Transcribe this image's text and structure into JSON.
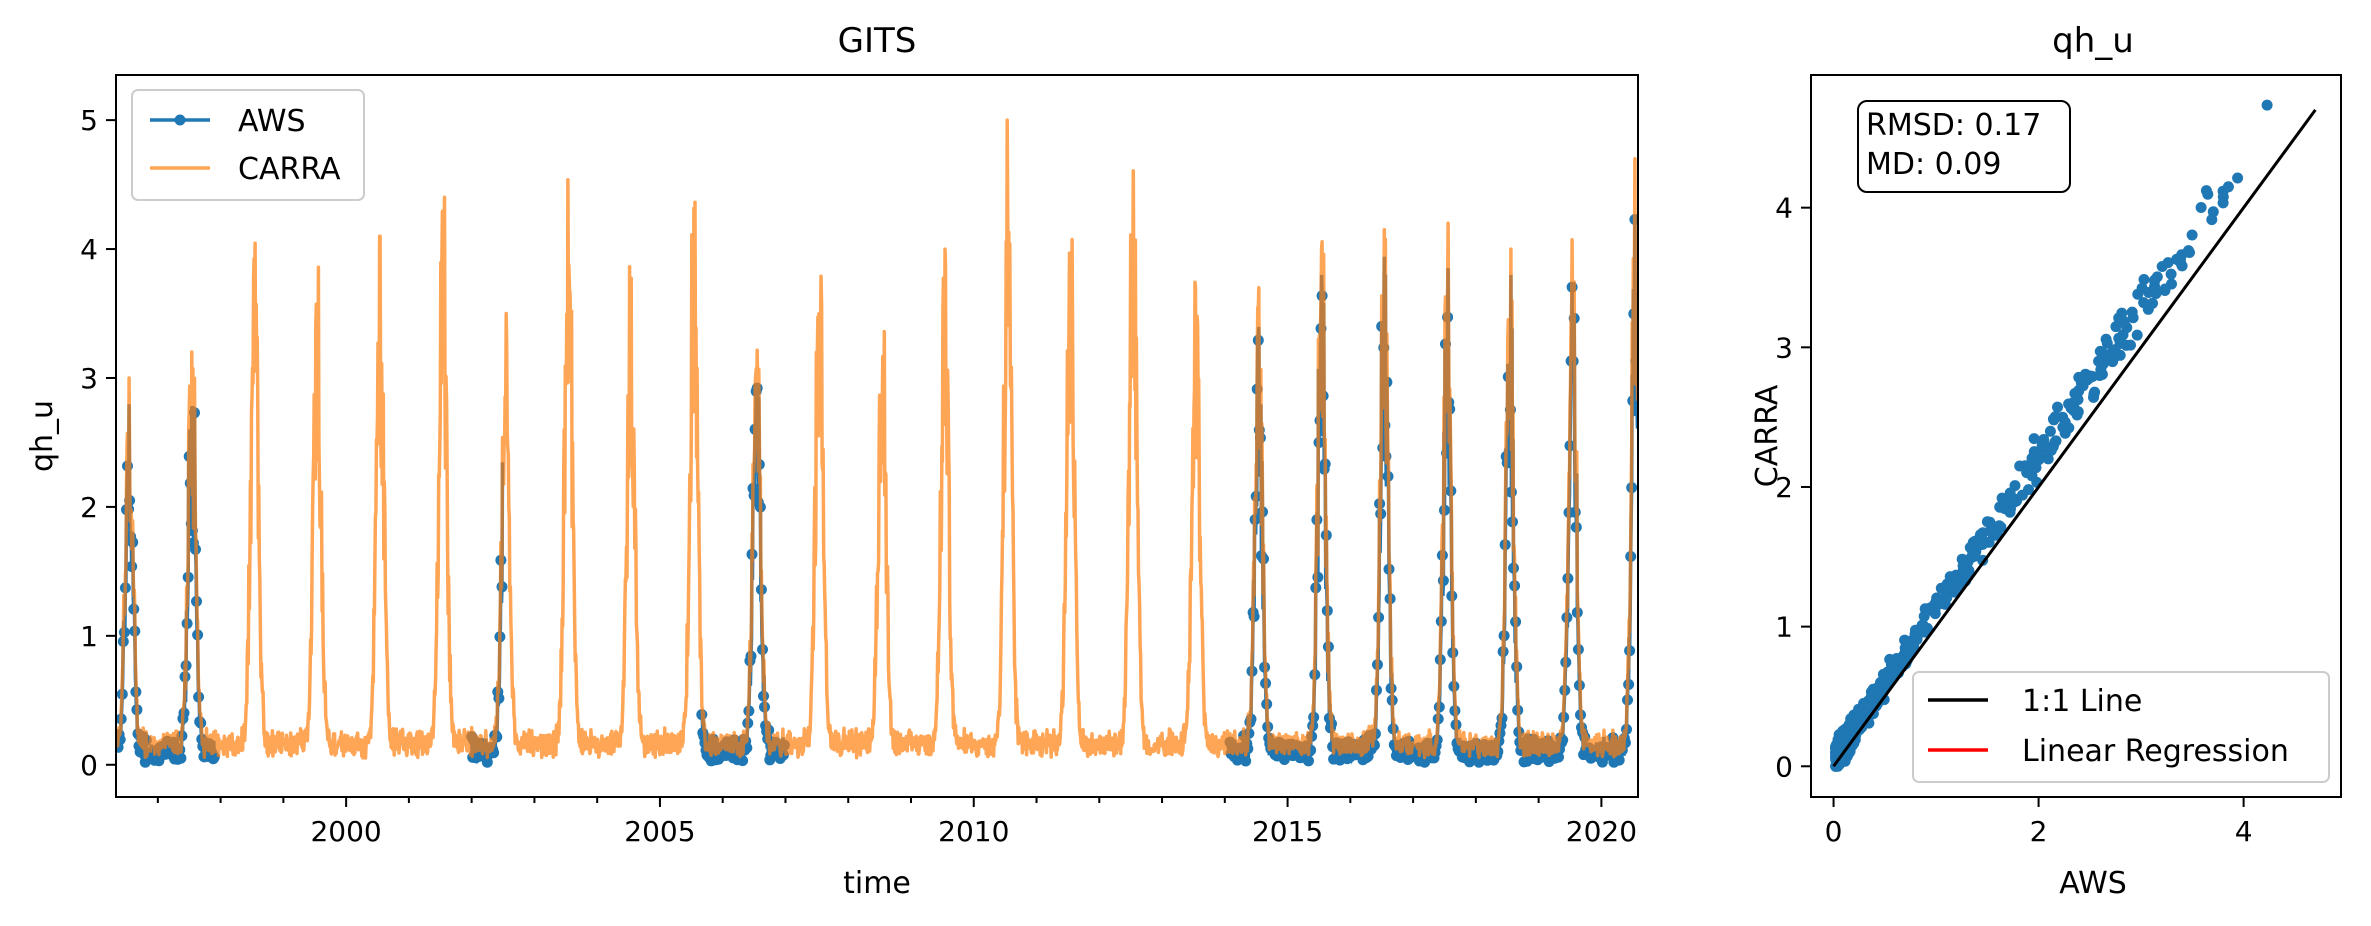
{
  "chart_data": [
    {
      "type": "line",
      "title": "GITS",
      "xlabel": "time",
      "ylabel": "qh_u",
      "xlim": [
        "1996-05",
        "2020-08"
      ],
      "ylim": [
        -0.25,
        5.35
      ],
      "x_ticks": [
        "2000",
        "2005",
        "2010",
        "2015",
        "2020"
      ],
      "y_ticks": [
        0,
        1,
        2,
        3,
        4,
        5
      ],
      "legend": {
        "position": "top-left",
        "entries": [
          "AWS",
          "CARRA"
        ]
      },
      "grid": false,
      "series": [
        {
          "name": "AWS",
          "color": "#1f77b4",
          "marker": "dot",
          "periods": [
            [
              "1996-05",
              "1997-12"
            ],
            [
              "2002-01",
              "2002-07"
            ],
            [
              "2005-09",
              "2007-01"
            ],
            [
              "2014-02",
              "2020-08"
            ]
          ]
        },
        {
          "name": "CARRA",
          "color": "#ff7f0e",
          "alpha": 0.7,
          "summer_peaks": [
            {
              "year": 1996,
              "value": 3.0
            },
            {
              "year": 1997,
              "value": 3.4
            },
            {
              "year": 1998,
              "value": 4.2
            },
            {
              "year": 1999,
              "value": 3.9
            },
            {
              "year": 2000,
              "value": 4.1
            },
            {
              "year": 2001,
              "value": 4.65
            },
            {
              "year": 2002,
              "value": 3.5
            },
            {
              "year": 2003,
              "value": 4.6
            },
            {
              "year": 2004,
              "value": 4.0
            },
            {
              "year": 2005,
              "value": 4.5
            },
            {
              "year": 2006,
              "value": 3.9
            },
            {
              "year": 2007,
              "value": 4.3
            },
            {
              "year": 2008,
              "value": 3.9
            },
            {
              "year": 2009,
              "value": 4.0
            },
            {
              "year": 2010,
              "value": 5.0
            },
            {
              "year": 2011,
              "value": 4.35
            },
            {
              "year": 2012,
              "value": 5.1
            },
            {
              "year": 2013,
              "value": 3.9
            },
            {
              "year": 2014,
              "value": 3.7
            },
            {
              "year": 2015,
              "value": 4.3
            },
            {
              "year": 2016,
              "value": 4.4
            },
            {
              "year": 2017,
              "value": 4.2
            },
            {
              "year": 2018,
              "value": 4.0
            },
            {
              "year": 2019,
              "value": 4.25
            },
            {
              "year": 2020,
              "value": 4.7
            }
          ],
          "winter_minimum": 0.05
        }
      ]
    },
    {
      "type": "scatter",
      "title": "qh_u",
      "xlabel": "AWS",
      "ylabel": "CARRA",
      "xlim": [
        -0.22,
        4.95
      ],
      "ylim": [
        -0.22,
        4.95
      ],
      "x_ticks": [
        0,
        2,
        4
      ],
      "y_ticks": [
        0,
        1,
        2,
        3,
        4
      ],
      "grid": false,
      "annotation": {
        "position": "top-left",
        "lines": [
          "RMSD: 0.17",
          "MD: 0.09"
        ]
      },
      "legend": {
        "position": "bottom-right",
        "entries": [
          "1:1 Line",
          "Linear Regression"
        ]
      },
      "series": [
        {
          "name": "AWS vs CARRA",
          "color": "#1f77b4",
          "x_range": [
            0.0,
            4.7
          ],
          "y_range": [
            0.0,
            4.75
          ],
          "offset": 0.09
        }
      ],
      "lines": [
        {
          "name": "1:1 Line",
          "color": "#000000",
          "from": [
            0,
            0
          ],
          "to": [
            4.7,
            4.7
          ]
        },
        {
          "name": "Linear Regression",
          "color": "#ff0000"
        }
      ]
    }
  ]
}
